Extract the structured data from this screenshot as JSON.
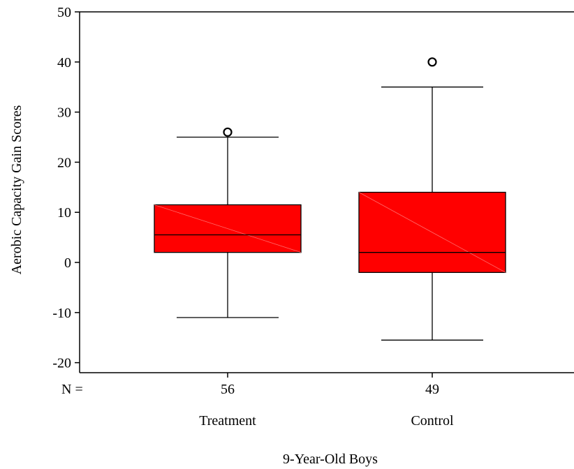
{
  "chart_data": {
    "type": "boxplot",
    "title": "",
    "xlabel": "9-Year-Old Boys",
    "ylabel": "Aerobic Capacity Gain Scores",
    "ylim": [
      -22,
      50
    ],
    "yticks": [
      50,
      40,
      30,
      20,
      10,
      0,
      -10,
      -20
    ],
    "ytick_labels": [
      "50",
      "40",
      "30",
      "20",
      "10",
      "0",
      "-10",
      "-20"
    ],
    "n_label": "N =",
    "box_color": "#ff0000",
    "grid": false,
    "groups": [
      {
        "category": "Treatment",
        "n": "56",
        "whisker_low": -11,
        "q1": 2,
        "median": 5.5,
        "q3": 11.5,
        "whisker_high": 25,
        "outliers": [
          26
        ]
      },
      {
        "category": "Control",
        "n": "49",
        "whisker_low": -15.5,
        "q1": -2,
        "median": 2,
        "q3": 14,
        "whisker_high": 35,
        "outliers": [
          40
        ]
      }
    ]
  }
}
